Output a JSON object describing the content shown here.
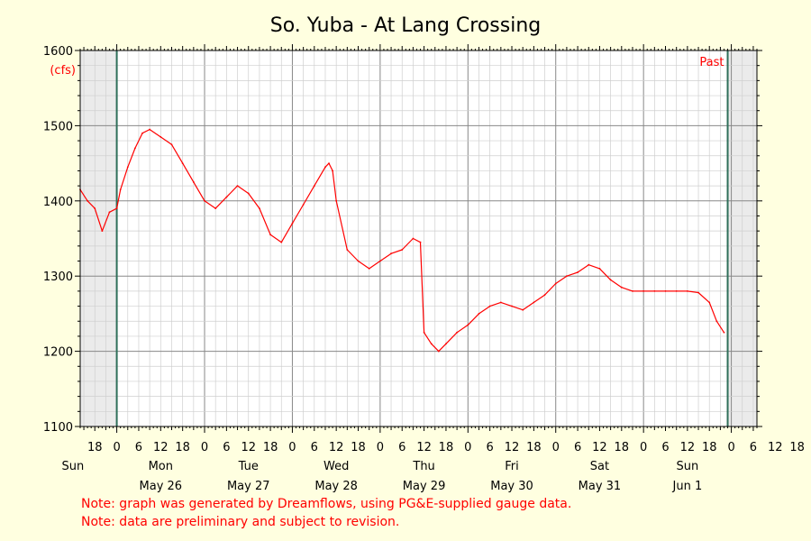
{
  "colors": {
    "background": "#ffffe0",
    "plot_background": "#ffffff",
    "shaded_region": "#ebebeb",
    "series_line": "#ff0000",
    "marker_line": "#2f6f5a",
    "note_text": "#ff0000",
    "grid_minor": "#cfcfcf",
    "grid_major": "#888888"
  },
  "notes": [
    "Note: graph was generated by Dreamflows, using PG&E-supplied gauge data.",
    "Note: data are preliminary and subject to revision."
  ],
  "chart_data": {
    "type": "line",
    "title": "So. Yuba - At Lang Crossing",
    "ylabel": "(cfs)",
    "ylim": [
      1100,
      1600
    ],
    "yticks": [
      1100,
      1200,
      1300,
      1400,
      1500
    ],
    "xlim": [
      "2025-05-25T14:00",
      "2025-06-02T07:00"
    ],
    "x_tick_hours": [
      "18",
      "0",
      "6",
      "12",
      "18",
      "0",
      "6",
      "12",
      "18",
      "0",
      "6",
      "12",
      "18",
      "0",
      "6",
      "12",
      "18",
      "0",
      "6",
      "12",
      "18",
      "0",
      "6",
      "12",
      "18",
      "0",
      "6",
      "12",
      "18",
      "0",
      "6",
      "12",
      "18",
      "0",
      "6"
    ],
    "day_labels": [
      {
        "day": "Sun",
        "date": ""
      },
      {
        "day": "Mon",
        "date": "May 26"
      },
      {
        "day": "Tue",
        "date": "May 27"
      },
      {
        "day": "Wed",
        "date": "May 28"
      },
      {
        "day": "Thu",
        "date": "May 29"
      },
      {
        "day": "Fri",
        "date": "May 30"
      },
      {
        "day": "Sat",
        "date": "May 31"
      },
      {
        "day": "Sun",
        "date": "Jun 1"
      }
    ],
    "markers": [
      "2025-05-26T00:00",
      "2025-06-01T23:00"
    ],
    "annotation": "Past",
    "grid": true,
    "series": [
      {
        "x": [
          "2025-05-25T14:00",
          "2025-05-25T16:00",
          "2025-05-25T18:00",
          "2025-05-25T20:00",
          "2025-05-25T22:00",
          "2025-05-26T00:00",
          "2025-05-26T01:00",
          "2025-05-26T03:00",
          "2025-05-26T05:00",
          "2025-05-26T07:00",
          "2025-05-26T09:00",
          "2025-05-26T12:00",
          "2025-05-26T15:00",
          "2025-05-26T18:00",
          "2025-05-26T21:00",
          "2025-05-27T00:00",
          "2025-05-27T03:00",
          "2025-05-27T06:00",
          "2025-05-27T09:00",
          "2025-05-27T12:00",
          "2025-05-27T15:00",
          "2025-05-27T18:00",
          "2025-05-27T21:00",
          "2025-05-28T00:00",
          "2025-05-28T03:00",
          "2025-05-28T06:00",
          "2025-05-28T09:00",
          "2025-05-28T10:00",
          "2025-05-28T11:00",
          "2025-05-28T12:00",
          "2025-05-28T15:00",
          "2025-05-28T18:00",
          "2025-05-28T21:00",
          "2025-05-29T00:00",
          "2025-05-29T03:00",
          "2025-05-29T06:00",
          "2025-05-29T09:00",
          "2025-05-29T11:00",
          "2025-05-29T12:00",
          "2025-05-29T14:00",
          "2025-05-29T16:00",
          "2025-05-29T18:00",
          "2025-05-29T21:00",
          "2025-05-30T00:00",
          "2025-05-30T03:00",
          "2025-05-30T06:00",
          "2025-05-30T09:00",
          "2025-05-30T12:00",
          "2025-05-30T15:00",
          "2025-05-30T18:00",
          "2025-05-30T21:00",
          "2025-05-31T00:00",
          "2025-05-31T03:00",
          "2025-05-31T06:00",
          "2025-05-31T09:00",
          "2025-05-31T12:00",
          "2025-05-31T15:00",
          "2025-05-31T18:00",
          "2025-05-31T21:00",
          "2025-06-01T00:00",
          "2025-06-01T03:00",
          "2025-06-01T06:00",
          "2025-06-01T09:00",
          "2025-06-01T12:00",
          "2025-06-01T15:00",
          "2025-06-01T18:00",
          "2025-06-01T20:00",
          "2025-06-01T22:00"
        ],
        "values": [
          1415,
          1400,
          1390,
          1360,
          1385,
          1390,
          1415,
          1445,
          1470,
          1490,
          1495,
          1485,
          1475,
          1450,
          1425,
          1400,
          1390,
          1405,
          1420,
          1410,
          1390,
          1355,
          1345,
          1370,
          1395,
          1420,
          1445,
          1450,
          1440,
          1400,
          1335,
          1320,
          1310,
          1320,
          1330,
          1335,
          1350,
          1345,
          1225,
          1210,
          1200,
          1210,
          1225,
          1235,
          1250,
          1260,
          1265,
          1260,
          1255,
          1265,
          1275,
          1290,
          1300,
          1305,
          1315,
          1310,
          1295,
          1285,
          1280,
          1280,
          1280,
          1280,
          1280,
          1280,
          1278,
          1265,
          1240,
          1225
        ]
      }
    ]
  }
}
